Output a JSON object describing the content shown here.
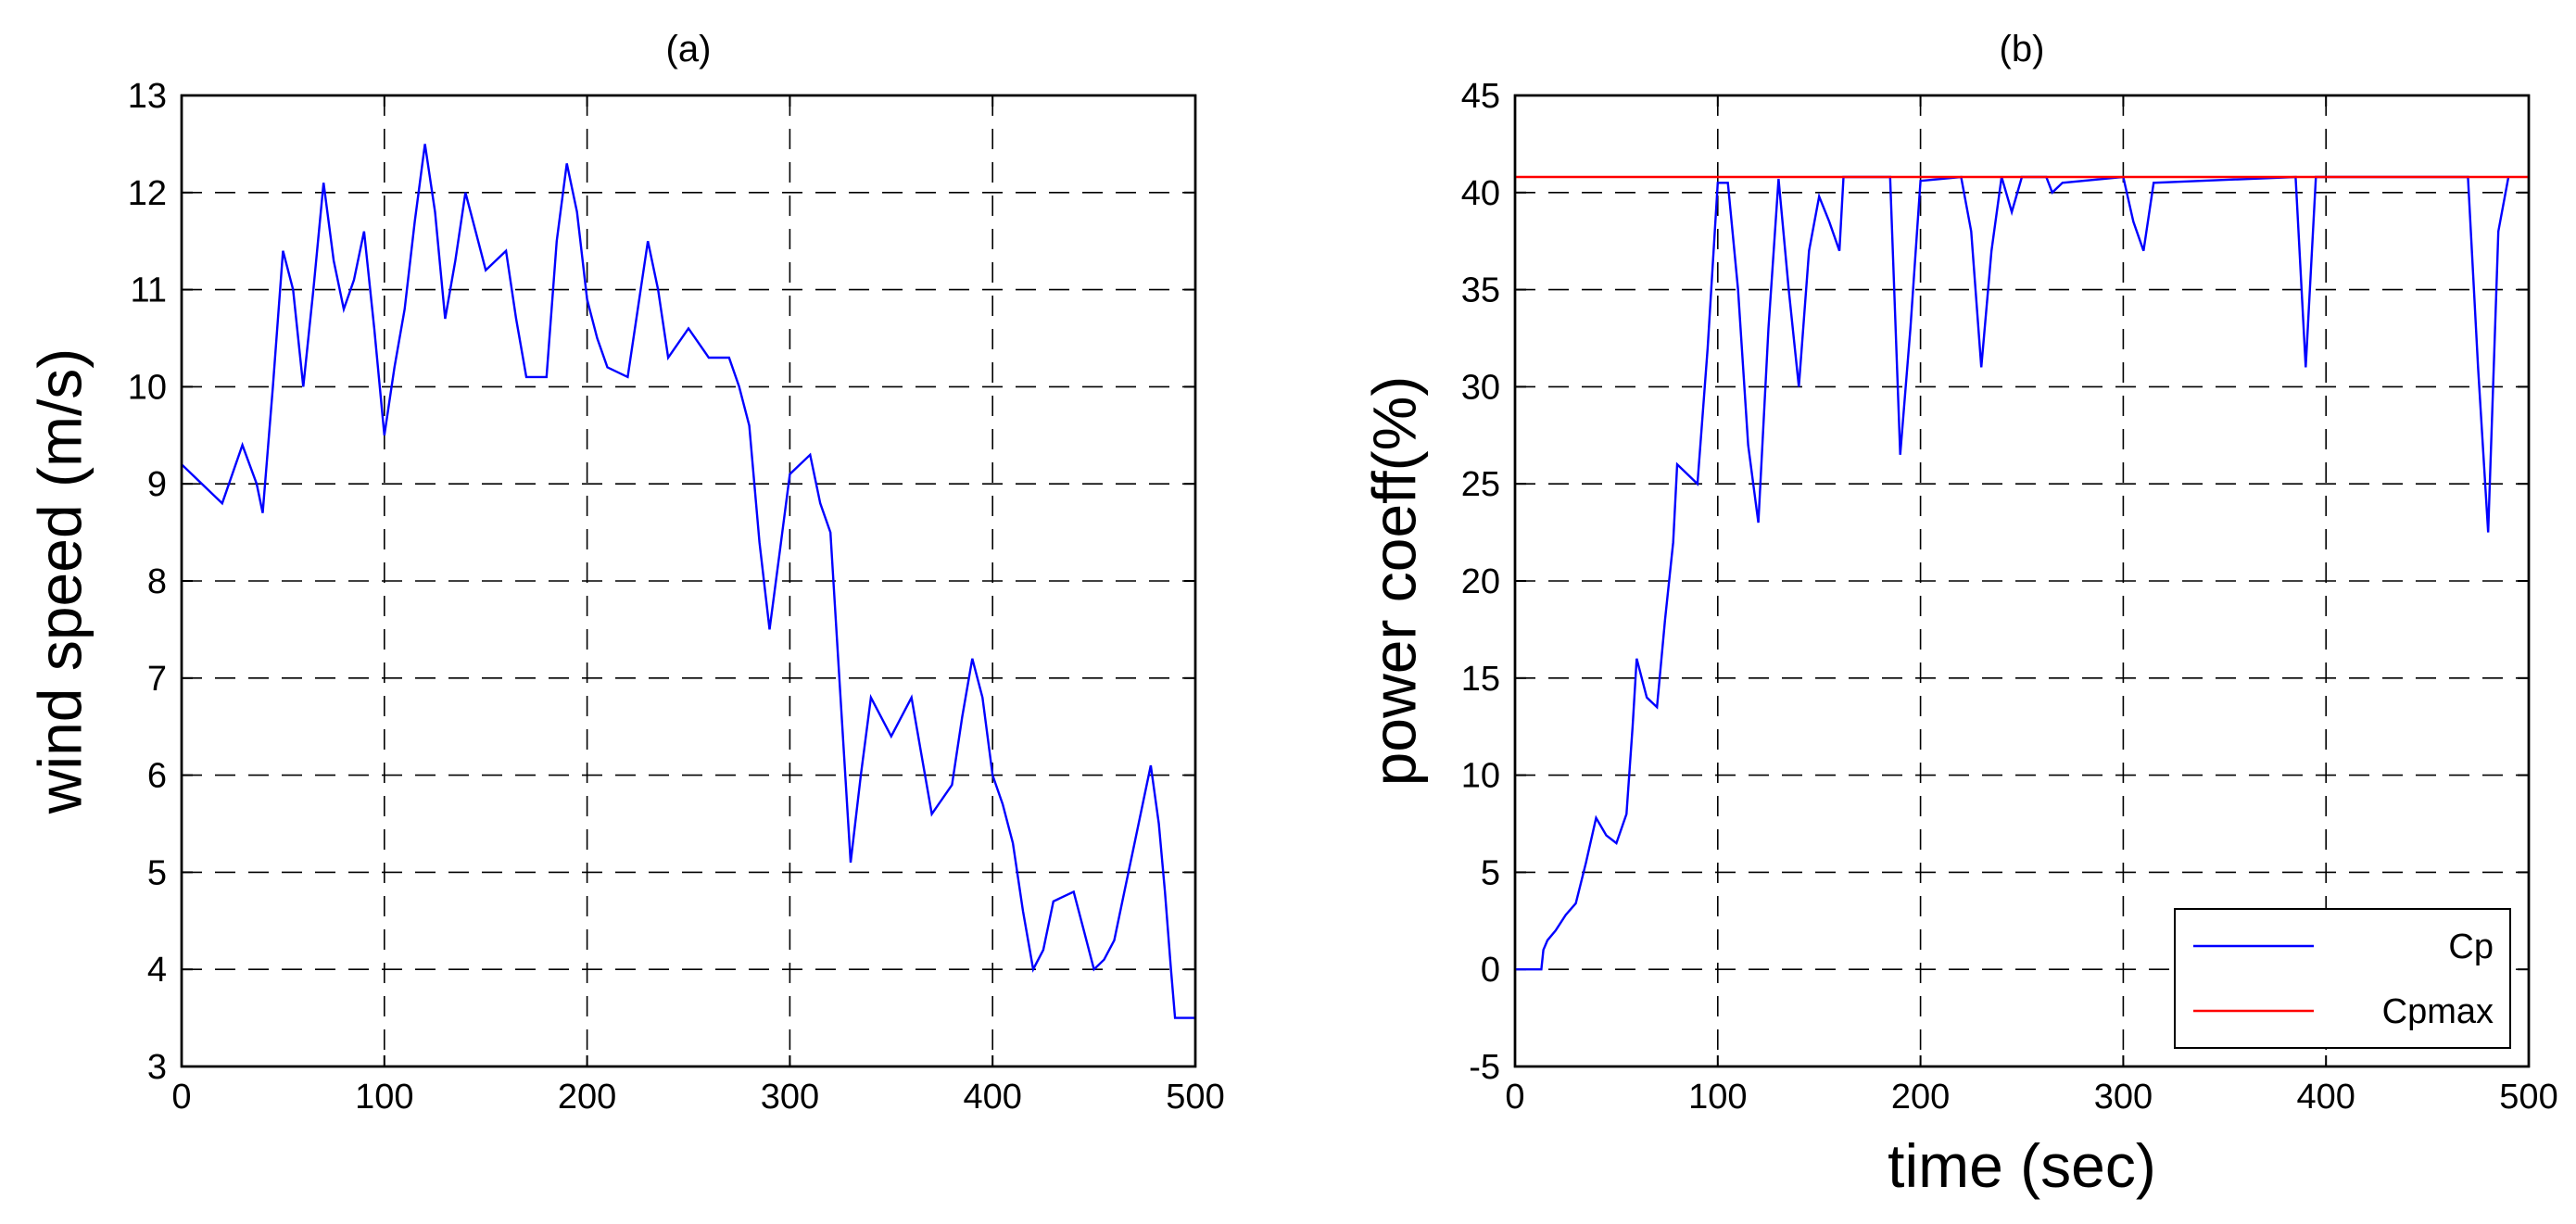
{
  "chart_data": [
    {
      "type": "line",
      "title": "(a)",
      "xlabel": "",
      "ylabel": "wind speed (m/s)",
      "xlim": [
        0,
        500
      ],
      "ylim": [
        3,
        13
      ],
      "xticks": [
        0,
        100,
        200,
        300,
        400,
        500
      ],
      "yticks": [
        3,
        4,
        5,
        6,
        7,
        8,
        9,
        10,
        11,
        12,
        13
      ],
      "grid": true,
      "legend": null,
      "series": [
        {
          "color": "#0000ff",
          "points": [
            [
              0,
              9.2
            ],
            [
              10,
              9.0
            ],
            [
              20,
              8.8
            ],
            [
              30,
              9.4
            ],
            [
              37,
              9.0
            ],
            [
              40,
              8.7
            ],
            [
              45,
              10.0
            ],
            [
              50,
              11.4
            ],
            [
              55,
              11.0
            ],
            [
              60,
              10.0
            ],
            [
              65,
              11.0
            ],
            [
              70,
              12.1
            ],
            [
              75,
              11.3
            ],
            [
              80,
              10.8
            ],
            [
              85,
              11.1
            ],
            [
              90,
              11.6
            ],
            [
              95,
              10.6
            ],
            [
              100,
              9.5
            ],
            [
              105,
              10.2
            ],
            [
              110,
              10.8
            ],
            [
              115,
              11.7
            ],
            [
              120,
              12.5
            ],
            [
              125,
              11.8
            ],
            [
              130,
              10.7
            ],
            [
              135,
              11.3
            ],
            [
              140,
              12.0
            ],
            [
              145,
              11.6
            ],
            [
              150,
              11.2
            ],
            [
              160,
              11.4
            ],
            [
              165,
              10.7
            ],
            [
              170,
              10.1
            ],
            [
              180,
              10.1
            ],
            [
              185,
              11.5
            ],
            [
              190,
              12.3
            ],
            [
              195,
              11.8
            ],
            [
              200,
              10.9
            ],
            [
              205,
              10.5
            ],
            [
              210,
              10.2
            ],
            [
              220,
              10.1
            ],
            [
              225,
              10.8
            ],
            [
              230,
              11.5
            ],
            [
              235,
              11.0
            ],
            [
              240,
              10.3
            ],
            [
              250,
              10.6
            ],
            [
              260,
              10.3
            ],
            [
              270,
              10.3
            ],
            [
              275,
              10.0
            ],
            [
              280,
              9.6
            ],
            [
              285,
              8.4
            ],
            [
              290,
              7.5
            ],
            [
              295,
              8.3
            ],
            [
              300,
              9.1
            ],
            [
              310,
              9.3
            ],
            [
              315,
              8.8
            ],
            [
              320,
              8.5
            ],
            [
              325,
              6.8
            ],
            [
              330,
              5.1
            ],
            [
              335,
              6.0
            ],
            [
              340,
              6.8
            ],
            [
              350,
              6.4
            ],
            [
              360,
              6.8
            ],
            [
              365,
              6.2
            ],
            [
              370,
              5.6
            ],
            [
              380,
              5.9
            ],
            [
              385,
              6.6
            ],
            [
              390,
              7.2
            ],
            [
              395,
              6.8
            ],
            [
              400,
              6.0
            ],
            [
              405,
              5.7
            ],
            [
              410,
              5.3
            ],
            [
              415,
              4.6
            ],
            [
              420,
              4.0
            ],
            [
              425,
              4.2
            ],
            [
              430,
              4.7
            ],
            [
              440,
              4.8
            ],
            [
              445,
              4.4
            ],
            [
              450,
              4.0
            ],
            [
              455,
              4.1
            ],
            [
              460,
              4.3
            ],
            [
              465,
              4.8
            ],
            [
              470,
              5.3
            ],
            [
              475,
              5.8
            ],
            [
              478,
              6.1
            ],
            [
              482,
              5.5
            ],
            [
              485,
              4.8
            ],
            [
              488,
              4.0
            ],
            [
              490,
              3.5
            ],
            [
              500,
              3.5
            ]
          ]
        }
      ]
    },
    {
      "type": "line",
      "title": "(b)",
      "xlabel": "time (sec)",
      "ylabel": "power coeff(%)",
      "xlim": [
        0,
        500
      ],
      "ylim": [
        -5,
        45
      ],
      "xticks": [
        0,
        100,
        200,
        300,
        400,
        500
      ],
      "yticks": [
        -5,
        0,
        5,
        10,
        15,
        20,
        25,
        30,
        35,
        40,
        45
      ],
      "grid": true,
      "legend": "bottom-right",
      "series": [
        {
          "name": "Cp",
          "color": "#0000ff",
          "points": [
            [
              0,
              0
            ],
            [
              13,
              0
            ],
            [
              14,
              1.0
            ],
            [
              16,
              1.5
            ],
            [
              20,
              2.0
            ],
            [
              25,
              2.8
            ],
            [
              30,
              3.4
            ],
            [
              35,
              5.5
            ],
            [
              40,
              7.8
            ],
            [
              45,
              6.9
            ],
            [
              50,
              6.5
            ],
            [
              55,
              8.0
            ],
            [
              58,
              12.5
            ],
            [
              60,
              16.0
            ],
            [
              65,
              14.0
            ],
            [
              70,
              13.5
            ],
            [
              74,
              18.0
            ],
            [
              78,
              22.0
            ],
            [
              80,
              26.0
            ],
            [
              85,
              25.5
            ],
            [
              90,
              25.0
            ],
            [
              95,
              32.0
            ],
            [
              100,
              40.5
            ],
            [
              105,
              40.5
            ],
            [
              110,
              35.0
            ],
            [
              115,
              27.0
            ],
            [
              120,
              23.0
            ],
            [
              125,
              33.0
            ],
            [
              130,
              40.7
            ],
            [
              135,
              35.0
            ],
            [
              140,
              30.0
            ],
            [
              145,
              37.0
            ],
            [
              150,
              39.8
            ],
            [
              155,
              38.5
            ],
            [
              160,
              37.0
            ],
            [
              162,
              40.8
            ],
            [
              185,
              40.8
            ],
            [
              190,
              26.5
            ],
            [
              195,
              33.0
            ],
            [
              200,
              40.6
            ],
            [
              220,
              40.8
            ],
            [
              225,
              38.0
            ],
            [
              230,
              31.0
            ],
            [
              235,
              37.0
            ],
            [
              240,
              40.8
            ],
            [
              245,
              39.0
            ],
            [
              250,
              40.8
            ],
            [
              262,
              40.8
            ],
            [
              265,
              40.0
            ],
            [
              270,
              40.5
            ],
            [
              300,
              40.8
            ],
            [
              305,
              38.5
            ],
            [
              310,
              37.0
            ],
            [
              315,
              40.5
            ],
            [
              385,
              40.8
            ],
            [
              390,
              31.0
            ],
            [
              395,
              40.8
            ],
            [
              470,
              40.8
            ],
            [
              475,
              31.0
            ],
            [
              480,
              22.5
            ],
            [
              485,
              38.0
            ],
            [
              490,
              40.8
            ]
          ]
        },
        {
          "name": "Cpmax",
          "color": "#ff0000",
          "points": [
            [
              0,
              40.8
            ],
            [
              500,
              40.8
            ]
          ]
        }
      ]
    }
  ]
}
